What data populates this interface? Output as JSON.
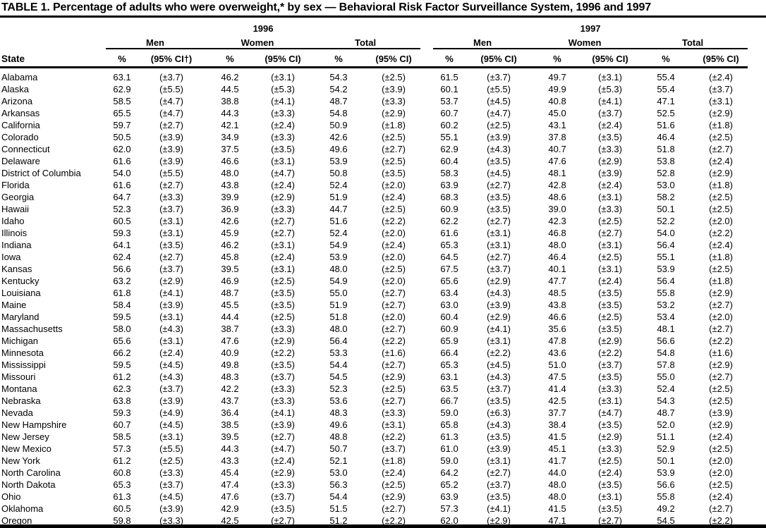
{
  "title": "TABLE 1. Percentage of adults who were overweight,* by sex — Behavioral Risk Factor Surveillance System, 1996 and 1997",
  "table": {
    "state_header": "State",
    "years": [
      "1996",
      "1997"
    ],
    "subgroups": [
      "Men",
      "Women",
      "Total"
    ],
    "pct_header": "%",
    "ci_header": "(95% CI)",
    "ci_header_first": "(95% CI†)",
    "rows": [
      {
        "state": "Alabama",
        "values": [
          "63.1",
          "(±3.7)",
          "46.2",
          "(±3.1)",
          "54.3",
          "(±2.5)",
          "61.5",
          "(±3.7)",
          "49.7",
          "(±3.1)",
          "55.4",
          "(±2.4)"
        ]
      },
      {
        "state": "Alaska",
        "values": [
          "62.9",
          "(±5.5)",
          "44.5",
          "(±5.3)",
          "54.2",
          "(±3.9)",
          "60.1",
          "(±5.5)",
          "49.9",
          "(±5.3)",
          "55.4",
          "(±3.7)"
        ]
      },
      {
        "state": "Arizona",
        "values": [
          "58.5",
          "(±4.7)",
          "38.8",
          "(±4.1)",
          "48.7",
          "(±3.3)",
          "53.7",
          "(±4.5)",
          "40.8",
          "(±4.1)",
          "47.1",
          "(±3.1)"
        ]
      },
      {
        "state": "Arkansas",
        "values": [
          "65.5",
          "(±4.7)",
          "44.3",
          "(±3.3)",
          "54.8",
          "(±2.9)",
          "60.7",
          "(±4.7)",
          "45.0",
          "(±3.7)",
          "52.5",
          "(±2.9)"
        ]
      },
      {
        "state": "California",
        "values": [
          "59.7",
          "(±2.7)",
          "42.1",
          "(±2.4)",
          "50.9",
          "(±1.8)",
          "60.2",
          "(±2.5)",
          "43.1",
          "(±2.4)",
          "51.6",
          "(±1.8)"
        ]
      },
      {
        "state": "Colorado",
        "values": [
          "50.5",
          "(±3.9)",
          "34.9",
          "(±3.3)",
          "42.6",
          "(±2.5)",
          "55.1",
          "(±3.9)",
          "37.8",
          "(±3.5)",
          "46.4",
          "(±2.5)"
        ]
      },
      {
        "state": "Connecticut",
        "values": [
          "62.0",
          "(±3.9)",
          "37.5",
          "(±3.5)",
          "49.6",
          "(±2.7)",
          "62.9",
          "(±4.3)",
          "40.7",
          "(±3.3)",
          "51.8",
          "(±2.7)"
        ]
      },
      {
        "state": "Delaware",
        "values": [
          "61.6",
          "(±3.9)",
          "46.6",
          "(±3.1)",
          "53.9",
          "(±2.5)",
          "60.4",
          "(±3.5)",
          "47.6",
          "(±2.9)",
          "53.8",
          "(±2.4)"
        ]
      },
      {
        "state": "District of Columbia",
        "values": [
          "54.0",
          "(±5.5)",
          "48.0",
          "(±4.7)",
          "50.8",
          "(±3.5)",
          "58.3",
          "(±4.5)",
          "48.1",
          "(±3.9)",
          "52.8",
          "(±2.9)"
        ]
      },
      {
        "state": "Florida",
        "values": [
          "61.6",
          "(±2.7)",
          "43.8",
          "(±2.4)",
          "52.4",
          "(±2.0)",
          "63.9",
          "(±2.7)",
          "42.8",
          "(±2.4)",
          "53.0",
          "(±1.8)"
        ]
      },
      {
        "state": "Georgia",
        "values": [
          "64.7",
          "(±3.3)",
          "39.9",
          "(±2.9)",
          "51.9",
          "(±2.4)",
          "68.3",
          "(±3.5)",
          "48.6",
          "(±3.1)",
          "58.2",
          "(±2.5)"
        ]
      },
      {
        "state": "Hawaii",
        "values": [
          "52.3",
          "(±3.7)",
          "36.9",
          "(±3.3)",
          "44.7",
          "(±2.5)",
          "60.9",
          "(±3.5)",
          "39.0",
          "(±3.3)",
          "50.1",
          "(±2.5)"
        ]
      },
      {
        "state": "Idaho",
        "values": [
          "60.5",
          "(±3.1)",
          "42.6",
          "(±2.7)",
          "51.6",
          "(±2.2)",
          "62.2",
          "(±2.7)",
          "42.3",
          "(±2.5)",
          "52.2",
          "(±2.0)"
        ]
      },
      {
        "state": "Illinois",
        "values": [
          "59.3",
          "(±3.1)",
          "45.9",
          "(±2.7)",
          "52.4",
          "(±2.0)",
          "61.6",
          "(±3.1)",
          "46.8",
          "(±2.7)",
          "54.0",
          "(±2.2)"
        ]
      },
      {
        "state": "Indiana",
        "values": [
          "64.1",
          "(±3.5)",
          "46.2",
          "(±3.1)",
          "54.9",
          "(±2.4)",
          "65.3",
          "(±3.1)",
          "48.0",
          "(±3.1)",
          "56.4",
          "(±2.4)"
        ]
      },
      {
        "state": "Iowa",
        "values": [
          "62.4",
          "(±2.7)",
          "45.8",
          "(±2.4)",
          "53.9",
          "(±2.0)",
          "64.5",
          "(±2.7)",
          "46.4",
          "(±2.5)",
          "55.1",
          "(±1.8)"
        ]
      },
      {
        "state": "Kansas",
        "values": [
          "56.6",
          "(±3.7)",
          "39.5",
          "(±3.1)",
          "48.0",
          "(±2.5)",
          "67.5",
          "(±3.7)",
          "40.1",
          "(±3.1)",
          "53.9",
          "(±2.5)"
        ]
      },
      {
        "state": "Kentucky",
        "values": [
          "63.2",
          "(±2.9)",
          "46.9",
          "(±2.5)",
          "54.9",
          "(±2.0)",
          "65.6",
          "(±2.9)",
          "47.7",
          "(±2.4)",
          "56.4",
          "(±1.8)"
        ]
      },
      {
        "state": "Louisiana",
        "values": [
          "61.8",
          "(±4.1)",
          "48.7",
          "(±3.5)",
          "55.0",
          "(±2.7)",
          "63.4",
          "(±4.3)",
          "48.5",
          "(±3.5)",
          "55.8",
          "(±2.9)"
        ]
      },
      {
        "state": "Maine",
        "values": [
          "58.4",
          "(±3.9)",
          "45.5",
          "(±3.5)",
          "51.9",
          "(±2.7)",
          "63.0",
          "(±3.9)",
          "43.8",
          "(±3.5)",
          "53.2",
          "(±2.7)"
        ]
      },
      {
        "state": "Maryland",
        "values": [
          "59.5",
          "(±3.1)",
          "44.4",
          "(±2.5)",
          "51.8",
          "(±2.0)",
          "60.4",
          "(±2.9)",
          "46.6",
          "(±2.5)",
          "53.4",
          "(±2.0)"
        ]
      },
      {
        "state": "Massachusetts",
        "values": [
          "58.0",
          "(±4.3)",
          "38.7",
          "(±3.3)",
          "48.0",
          "(±2.7)",
          "60.9",
          "(±4.1)",
          "35.6",
          "(±3.5)",
          "48.1",
          "(±2.7)"
        ]
      },
      {
        "state": "Michigan",
        "values": [
          "65.6",
          "(±3.1)",
          "47.6",
          "(±2.9)",
          "56.4",
          "(±2.2)",
          "65.9",
          "(±3.1)",
          "47.8",
          "(±2.9)",
          "56.6",
          "(±2.2)"
        ]
      },
      {
        "state": "Minnesota",
        "values": [
          "66.2",
          "(±2.4)",
          "40.9",
          "(±2.2)",
          "53.3",
          "(±1.6)",
          "66.4",
          "(±2.2)",
          "43.6",
          "(±2.2)",
          "54.8",
          "(±1.6)"
        ]
      },
      {
        "state": "Mississippi",
        "values": [
          "59.5",
          "(±4.5)",
          "49.8",
          "(±3.5)",
          "54.4",
          "(±2.7)",
          "65.3",
          "(±4.5)",
          "51.0",
          "(±3.7)",
          "57.8",
          "(±2.9)"
        ]
      },
      {
        "state": "Missouri",
        "values": [
          "61.2",
          "(±4.3)",
          "48.3",
          "(±3.7)",
          "54.5",
          "(±2.9)",
          "63.1",
          "(±4.3)",
          "47.5",
          "(±3.5)",
          "55.0",
          "(±2.7)"
        ]
      },
      {
        "state": "Montana",
        "values": [
          "62.3",
          "(±3.7)",
          "42.2",
          "(±3.3)",
          "52.3",
          "(±2.5)",
          "63.5",
          "(±3.7)",
          "41.4",
          "(±3.3)",
          "52.4",
          "(±2.5)"
        ]
      },
      {
        "state": "Nebraska",
        "values": [
          "63.8",
          "(±3.9)",
          "43.7",
          "(±3.3)",
          "53.6",
          "(±2.7)",
          "66.7",
          "(±3.5)",
          "42.5",
          "(±3.1)",
          "54.3",
          "(±2.5)"
        ]
      },
      {
        "state": "Nevada",
        "values": [
          "59.3",
          "(±4.9)",
          "36.4",
          "(±4.1)",
          "48.3",
          "(±3.3)",
          "59.0",
          "(±6.3)",
          "37.7",
          "(±4.7)",
          "48.7",
          "(±3.9)"
        ]
      },
      {
        "state": "New Hampshire",
        "values": [
          "60.7",
          "(±4.5)",
          "38.5",
          "(±3.9)",
          "49.6",
          "(±3.1)",
          "65.8",
          "(±4.3)",
          "38.4",
          "(±3.5)",
          "52.0",
          "(±2.9)"
        ]
      },
      {
        "state": "New Jersey",
        "values": [
          "58.5",
          "(±3.1)",
          "39.5",
          "(±2.7)",
          "48.8",
          "(±2.2)",
          "61.3",
          "(±3.5)",
          "41.5",
          "(±2.9)",
          "51.1",
          "(±2.4)"
        ]
      },
      {
        "state": "New Mexico",
        "values": [
          "57.3",
          "(±5.5)",
          "44.3",
          "(±4.7)",
          "50.7",
          "(±3.7)",
          "61.0",
          "(±3.9)",
          "45.1",
          "(±3.3)",
          "52.9",
          "(±2.5)"
        ]
      },
      {
        "state": "New York",
        "values": [
          "61.2",
          "(±2.5)",
          "43.3",
          "(±2.4)",
          "52.1",
          "(±1.8)",
          "59.0",
          "(±3.1)",
          "41.7",
          "(±2.5)",
          "50.1",
          "(±2.0)"
        ]
      },
      {
        "state": "North Carolina",
        "values": [
          "60.8",
          "(±3.3)",
          "45.4",
          "(±2.9)",
          "53.0",
          "(±2.4)",
          "64.2",
          "(±2.7)",
          "44.0",
          "(±2.4)",
          "53.9",
          "(±2.0)"
        ]
      },
      {
        "state": "North Dakota",
        "values": [
          "65.3",
          "(±3.7)",
          "47.4",
          "(±3.3)",
          "56.3",
          "(±2.5)",
          "65.2",
          "(±3.7)",
          "48.0",
          "(±3.5)",
          "56.6",
          "(±2.5)"
        ]
      },
      {
        "state": "Ohio",
        "values": [
          "61.3",
          "(±4.5)",
          "47.6",
          "(±3.7)",
          "54.4",
          "(±2.9)",
          "63.9",
          "(±3.5)",
          "48.0",
          "(±3.1)",
          "55.8",
          "(±2.4)"
        ]
      },
      {
        "state": "Oklahoma",
        "values": [
          "60.5",
          "(±3.9)",
          "42.9",
          "(±3.5)",
          "51.5",
          "(±2.7)",
          "57.3",
          "(±4.1)",
          "41.5",
          "(±3.5)",
          "49.2",
          "(±2.7)"
        ]
      },
      {
        "state": "Oregon",
        "values": [
          "59.8",
          "(±3.3)",
          "42.5",
          "(±2.7)",
          "51.2",
          "(±2.2)",
          "62.0",
          "(±2.9)",
          "47.1",
          "(±2.7)",
          "54.5",
          "(±2.2)"
        ]
      }
    ]
  }
}
